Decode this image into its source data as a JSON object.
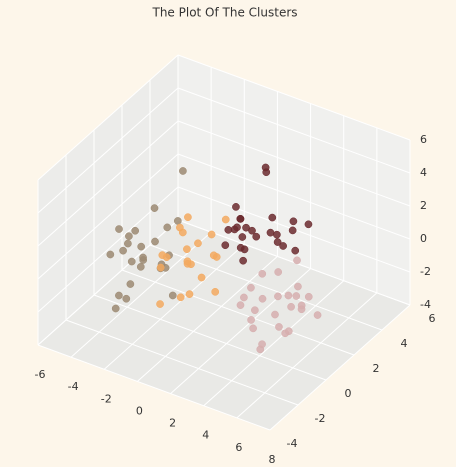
{
  "chart_data": {
    "type": "scatter3d",
    "title": "The Plot Of The Clusters",
    "xlim": [
      -6,
      8
    ],
    "ylim": [
      -4,
      6
    ],
    "zlim": [
      -4,
      6
    ],
    "xticks": [
      -6,
      -4,
      -2,
      0,
      2,
      4,
      6,
      8
    ],
    "yticks": [
      -4,
      -2,
      0,
      2,
      4,
      6
    ],
    "zticks": [
      -4,
      -2,
      0,
      2,
      4,
      6
    ],
    "grid": true,
    "series": [
      {
        "color": "#9c8a72",
        "x": [
          -3.2,
          -2.5,
          -3.8,
          -2.9,
          -3.5,
          -2.1,
          -4.0,
          -3.1,
          -2.7,
          -3.6,
          -2.4,
          -3.3,
          -4.4,
          -2.8,
          -3.0,
          -1.9,
          -3.7,
          -2.6,
          -3.4,
          -2.2,
          -4.8,
          -3.9,
          -1.5,
          -3.0,
          -2.3
        ],
        "y": [
          0.2,
          -0.8,
          0.9,
          -0.3,
          1.4,
          0.5,
          -1.2,
          1.8,
          -1.6,
          0.1,
          1.1,
          -0.5,
          0.6,
          2.2,
          -2.0,
          -0.1,
          1.6,
          0.8,
          -1.0,
          -1.9,
          1.0,
          -0.7,
          0.3,
          2.8,
          -2.6
        ],
        "z": [
          -1.0,
          -0.4,
          -1.6,
          0.3,
          -0.9,
          -1.3,
          0.1,
          -0.2,
          -1.8,
          0.7,
          -1.1,
          -0.6,
          -0.3,
          0.0,
          -2.2,
          -0.8,
          0.9,
          -1.5,
          0.4,
          -0.5,
          -1.2,
          1.3,
          -2.6,
          2.5,
          -0.7
        ]
      },
      {
        "color": "#f3a95f",
        "x": [
          -1.2,
          -0.4,
          -1.8,
          -0.9,
          -1.5,
          0.1,
          -2.0,
          -1.1,
          -0.6,
          -1.4,
          -0.2,
          -1.7,
          -0.8,
          -1.3,
          0.3,
          -2.3,
          -0.5,
          -1.0,
          -1.6,
          -0.1
        ],
        "y": [
          1.0,
          0.3,
          1.7,
          0.6,
          2.1,
          -0.4,
          1.4,
          2.6,
          -0.2,
          0.9,
          1.9,
          0.1,
          2.4,
          -0.8,
          1.2,
          0.5,
          2.9,
          -1.2,
          1.5,
          0.7
        ],
        "z": [
          -1.1,
          -0.3,
          -1.7,
          0.2,
          -0.8,
          -1.4,
          0.5,
          -0.5,
          -2.0,
          0.8,
          -1.0,
          -0.2,
          -1.5,
          0.0,
          -2.4,
          -0.6,
          0.4,
          -1.8,
          1.2,
          -1.3
        ]
      },
      {
        "color": "#6b2a2e",
        "x": [
          2.1,
          1.3,
          2.8,
          1.7,
          3.2,
          0.8,
          2.5,
          1.0,
          3.6,
          2.2,
          1.5,
          2.9,
          0.5,
          3.9,
          1.9,
          2.6,
          1.1,
          3.3,
          2.0,
          0.2,
          2.4,
          1.6,
          3.0,
          4.2,
          1.4
        ],
        "y": [
          2.0,
          1.4,
          2.7,
          1.1,
          3.3,
          2.4,
          0.8,
          3.0,
          1.7,
          2.9,
          0.5,
          2.2,
          1.9,
          3.6,
          1.3,
          0.3,
          3.9,
          2.5,
          1.0,
          2.8,
          4.3,
          1.6,
          0.1,
          2.3,
          3.5
        ],
        "z": [
          1.0,
          1.6,
          0.4,
          2.1,
          0.8,
          1.3,
          2.6,
          0.2,
          1.9,
          0.6,
          1.4,
          2.3,
          0.9,
          1.2,
          0.0,
          1.8,
          3.1,
          0.5,
          2.8,
          1.5,
          0.3,
          1.1,
          2.0,
          0.7,
          3.8
        ]
      },
      {
        "color": "#d6aeae",
        "x": [
          5.1,
          4.3,
          5.8,
          4.7,
          6.2,
          3.9,
          5.5,
          4.1,
          6.6,
          5.0,
          4.5,
          5.9,
          3.6,
          6.9,
          4.9,
          5.3,
          4.0,
          6.4,
          5.6,
          3.3,
          6.0,
          4.6,
          7.2,
          5.2,
          4.4
        ],
        "y": [
          0.0,
          -0.7,
          0.6,
          -1.3,
          0.9,
          0.3,
          -0.4,
          1.2,
          -1.0,
          -1.8,
          0.5,
          -0.2,
          -0.9,
          0.7,
          1.6,
          -1.5,
          0.2,
          -0.6,
          1.1,
          -0.3,
          -2.2,
          1.9,
          -0.8,
          0.4,
          -1.1
        ],
        "z": [
          0.0,
          -0.6,
          0.4,
          -1.1,
          -0.3,
          0.7,
          -1.4,
          0.2,
          -0.8,
          -0.1,
          -1.7,
          0.5,
          -0.4,
          -1.0,
          0.9,
          -2.0,
          -0.7,
          0.3,
          -1.2,
          -0.5,
          -0.9,
          -1.6,
          0.6,
          -2.5,
          1.1
        ]
      }
    ]
  }
}
